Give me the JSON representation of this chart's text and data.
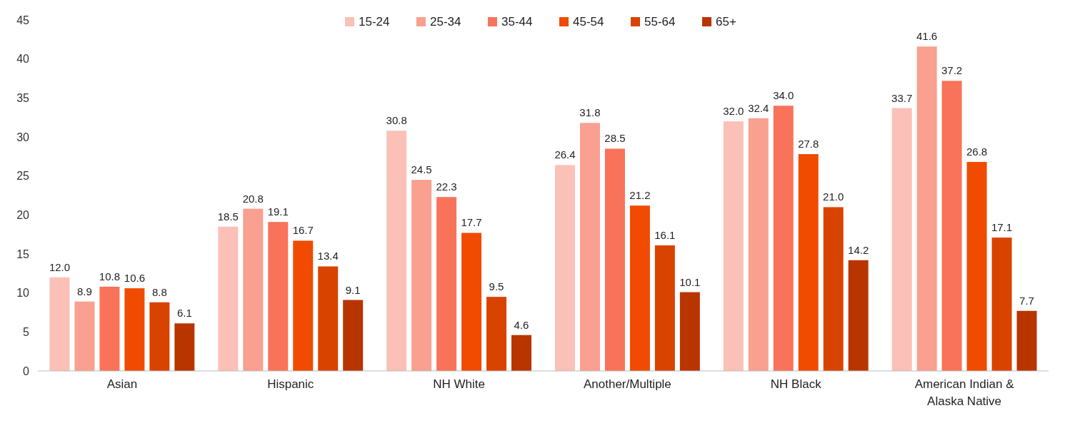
{
  "chart_data": {
    "type": "bar",
    "categories": [
      "Asian",
      "Hispanic",
      "NH White",
      "Another/Multiple",
      "NH Black",
      "American Indian & Alaska Native"
    ],
    "series": [
      {
        "name": "15-24",
        "color": "#fbc0b8",
        "values": [
          12.0,
          18.5,
          30.8,
          26.4,
          32.0,
          33.7
        ],
        "value_labels": [
          "12.0",
          "18.5",
          "30.8",
          "26.4",
          "32.0",
          "33.7"
        ]
      },
      {
        "name": "25-34",
        "color": "#f9a090",
        "values": [
          8.9,
          20.8,
          24.5,
          31.8,
          32.4,
          41.6
        ],
        "value_labels": [
          "8.9",
          "20.8",
          "24.5",
          "31.8",
          "32.4",
          "41.6"
        ]
      },
      {
        "name": "35-44",
        "color": "#f87359",
        "values": [
          10.8,
          19.1,
          22.3,
          28.5,
          34.0,
          37.2
        ],
        "value_labels": [
          "10.8",
          "19.1",
          "22.3",
          "28.5",
          "34.0",
          "37.2"
        ]
      },
      {
        "name": "45-54",
        "color": "#f04b00",
        "values": [
          10.6,
          16.7,
          17.7,
          21.2,
          27.8,
          26.8
        ],
        "value_labels": [
          "10.6",
          "16.7",
          "17.7",
          "21.2",
          "27.8",
          "26.8"
        ]
      },
      {
        "name": "55-64",
        "color": "#d94300",
        "values": [
          8.8,
          13.4,
          9.5,
          16.1,
          21.0,
          17.1
        ],
        "value_labels": [
          "8.8",
          "13.4",
          "9.5",
          "16.1",
          "21.0",
          "17.1"
        ]
      },
      {
        "name": "65+",
        "color": "#b93500",
        "values": [
          6.1,
          9.1,
          4.6,
          10.1,
          14.2,
          7.7
        ],
        "value_labels": [
          "6.1",
          "9.1",
          "4.6",
          "10.1",
          "14.2",
          "7.7"
        ]
      }
    ],
    "ylim": [
      0,
      45
    ],
    "yticks": [
      0,
      5,
      10,
      15,
      20,
      25,
      30,
      35,
      40,
      45
    ],
    "legend": "top"
  }
}
